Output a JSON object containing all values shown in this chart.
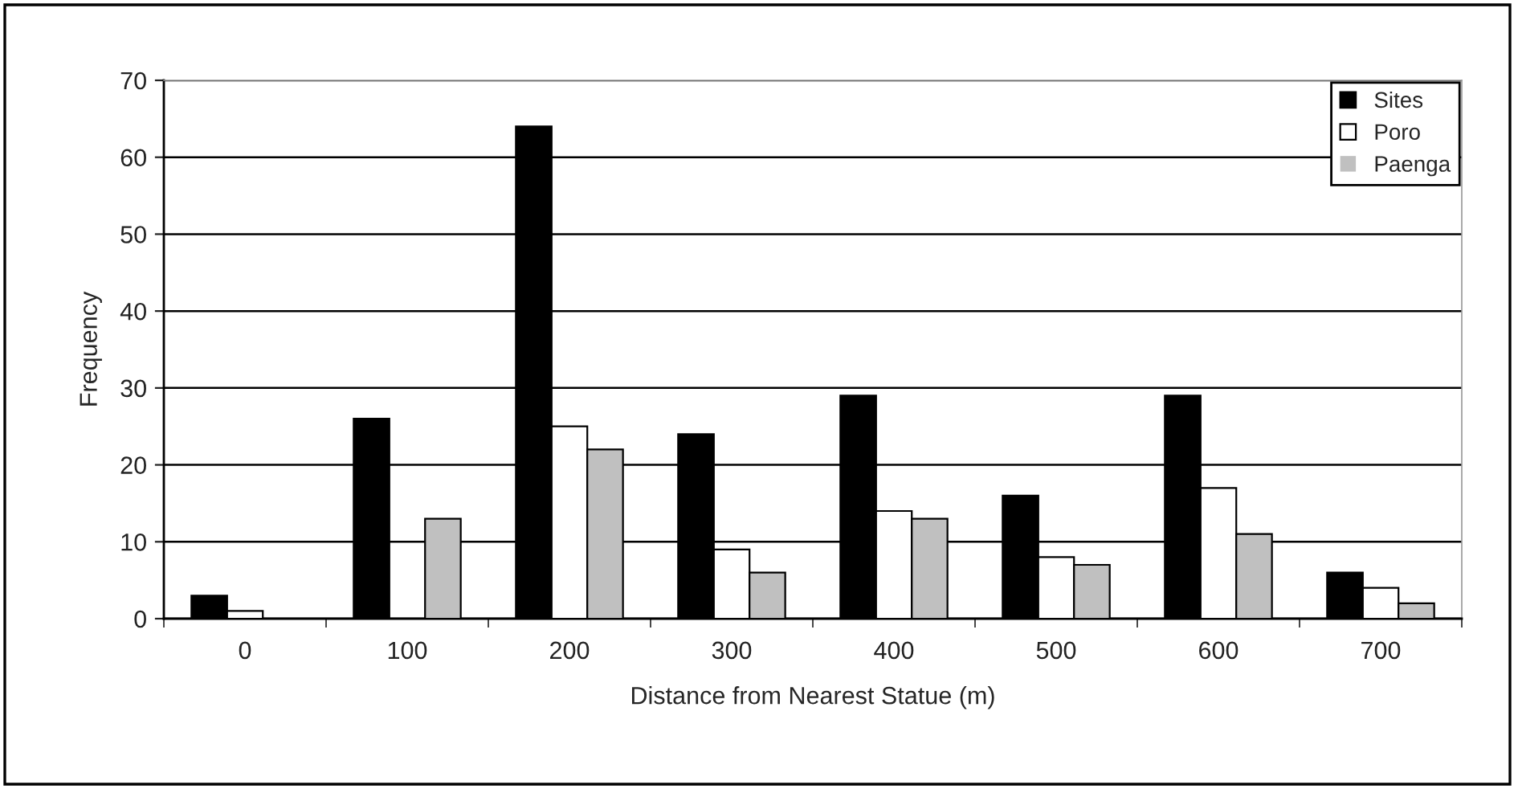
{
  "chart_data": {
    "type": "bar",
    "xlabel": "Distance from Nearest Statue (m)",
    "ylabel": "Frequency",
    "categories": [
      "0",
      "100",
      "200",
      "300",
      "400",
      "500",
      "600",
      "700"
    ],
    "series": [
      {
        "name": "Sites",
        "color": "#000000",
        "values": [
          3,
          26,
          64,
          24,
          29,
          16,
          29,
          6
        ]
      },
      {
        "name": "Poro",
        "color": "#ffffff",
        "values": [
          1,
          0,
          25,
          9,
          14,
          8,
          17,
          4
        ]
      },
      {
        "name": "Paenga",
        "color": "#c0c0c0",
        "values": [
          0,
          13,
          22,
          6,
          13,
          7,
          11,
          2
        ]
      }
    ],
    "ylim": [
      0,
      70
    ],
    "yticks": [
      0,
      10,
      20,
      30,
      40,
      50,
      60,
      70
    ],
    "grid": "y",
    "legend": "top right"
  }
}
